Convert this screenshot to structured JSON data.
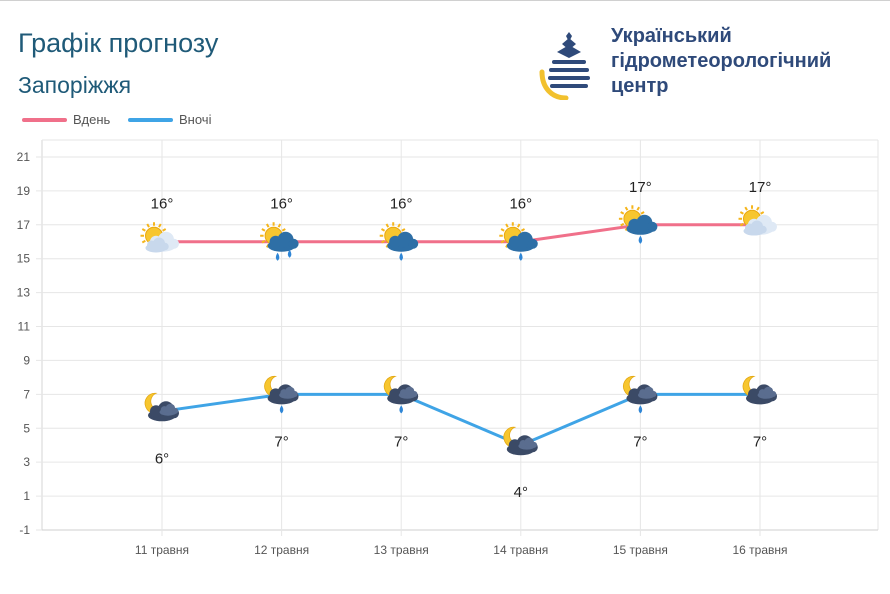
{
  "header": {
    "title": "Графік прогнозу",
    "city": "Запоріжжя"
  },
  "logo": {
    "line1": "Український",
    "line2": "гідрометеорологічний",
    "line3": "центр",
    "icon": "water-drop-logo-icon",
    "colors": {
      "navy": "#2f4a7a",
      "yellow": "#f2c12e"
    }
  },
  "legend": {
    "day_label": "Вдень",
    "night_label": "Вночі"
  },
  "chart_data": {
    "type": "line",
    "categories": [
      "11 травня",
      "12 травня",
      "13 травня",
      "14 травня",
      "15 травня",
      "16 травня"
    ],
    "series": [
      {
        "name": "Вдень",
        "color": "#f0708a",
        "values": [
          16,
          16,
          16,
          16,
          17,
          17
        ],
        "labels": [
          "16°",
          "16°",
          "16°",
          "16°",
          "17°",
          "17°"
        ],
        "icons": [
          "sun-cloud-icon",
          "sun-cloud-rain-icon",
          "sun-cloud-drizzle-icon",
          "sun-cloud-drizzle-icon",
          "sun-cloud-drizzle-icon",
          "sun-cloud-icon"
        ]
      },
      {
        "name": "Вночі",
        "color": "#3fa4e6",
        "values": [
          6,
          7,
          7,
          4,
          7,
          7
        ],
        "labels": [
          "6°",
          "7°",
          "7°",
          "4°",
          "7°",
          "7°"
        ],
        "icons": [
          "moon-cloud-icon",
          "moon-cloud-drizzle-icon",
          "moon-cloud-drizzle-icon",
          "moon-cloud-icon",
          "moon-cloud-drizzle-icon",
          "moon-cloud-icon"
        ]
      }
    ],
    "y_ticks": [
      "-1",
      "1",
      "3",
      "5",
      "7",
      "9",
      "11",
      "13",
      "15",
      "17",
      "19",
      "21"
    ],
    "ylim": [
      -1,
      22
    ],
    "grid": true,
    "legend_position": "top-left"
  }
}
